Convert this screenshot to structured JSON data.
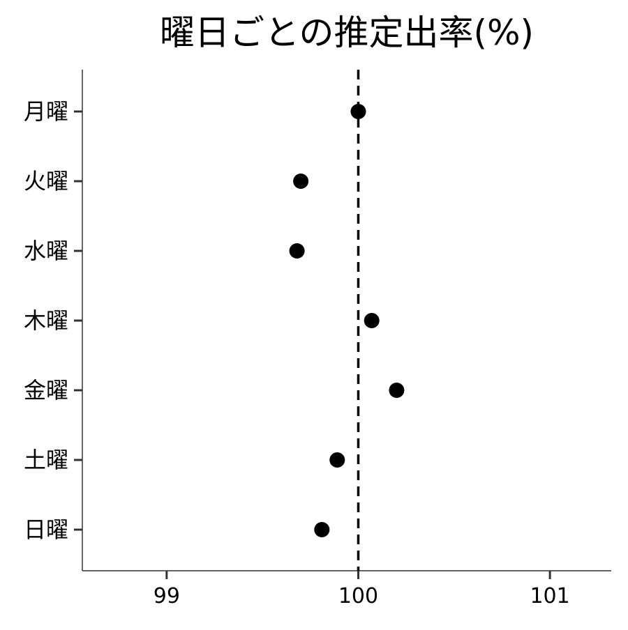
{
  "chart_data": {
    "type": "scatter",
    "title": "曜日ごとの推定出率(%)",
    "xlabel": "",
    "ylabel": "",
    "xlim": [
      98.56,
      101.32
    ],
    "x_ticks": [
      99,
      100,
      101
    ],
    "x_tick_labels": [
      "99",
      "100",
      "101"
    ],
    "reference_line": {
      "x": 100,
      "style": "dashed"
    },
    "categories": [
      "月曜",
      "火曜",
      "水曜",
      "木曜",
      "金曜",
      "土曜",
      "日曜"
    ],
    "values": [
      100.0,
      99.7,
      99.68,
      100.07,
      100.2,
      99.89,
      99.81
    ],
    "grid": false,
    "legend": "none",
    "colors": {
      "point": "#000000",
      "axis": "#333333",
      "reference": "#000000"
    }
  }
}
